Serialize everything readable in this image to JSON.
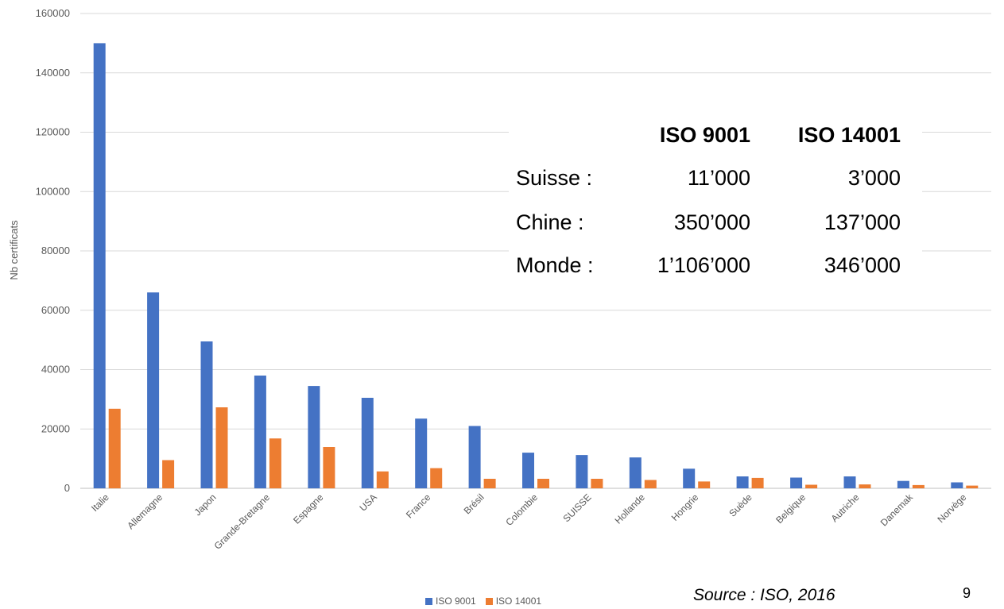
{
  "chart_data": {
    "type": "bar",
    "ylabel": "Nb certificats",
    "ylim": [
      0,
      160000
    ],
    "yticks": [
      0,
      20000,
      40000,
      60000,
      80000,
      100000,
      120000,
      140000,
      160000
    ],
    "grid": true,
    "legend": "bottom",
    "categories": [
      "Italie",
      "Allemagne",
      "Japon",
      "Grande-Bretagne",
      "Espagne",
      "USA",
      "France",
      "Brésil",
      "Colombie",
      "SUISSE",
      "Hollande",
      "Hongrie",
      "Suède",
      "Belgique",
      "Autriche",
      "Danemak",
      "Norvège"
    ],
    "series": [
      {
        "name": "ISO 9001",
        "color": "#4472C4",
        "values": [
          150000,
          66000,
          49500,
          38000,
          34500,
          30500,
          23500,
          21000,
          12000,
          11200,
          10400,
          6600,
          4000,
          3600,
          4000,
          2500,
          2000
        ]
      },
      {
        "name": "ISO 14001",
        "color": "#ED7D31",
        "values": [
          26800,
          9500,
          27300,
          16800,
          13900,
          5700,
          6800,
          3200,
          3200,
          3200,
          2800,
          2300,
          3500,
          1200,
          1300,
          1100,
          900
        ]
      }
    ]
  },
  "info_table": {
    "headers": [
      "ISO 9001",
      "ISO 14001"
    ],
    "rows": [
      {
        "label": "Suisse :",
        "iso9001": "11’000",
        "iso14001": "3’000"
      },
      {
        "label": "Chine :",
        "iso9001": "350’000",
        "iso14001": "137’000"
      },
      {
        "label": "Monde :",
        "iso9001": "1’106’000",
        "iso14001": "346’000"
      }
    ]
  },
  "source": "Source : ISO, 2016",
  "page_number": "9"
}
